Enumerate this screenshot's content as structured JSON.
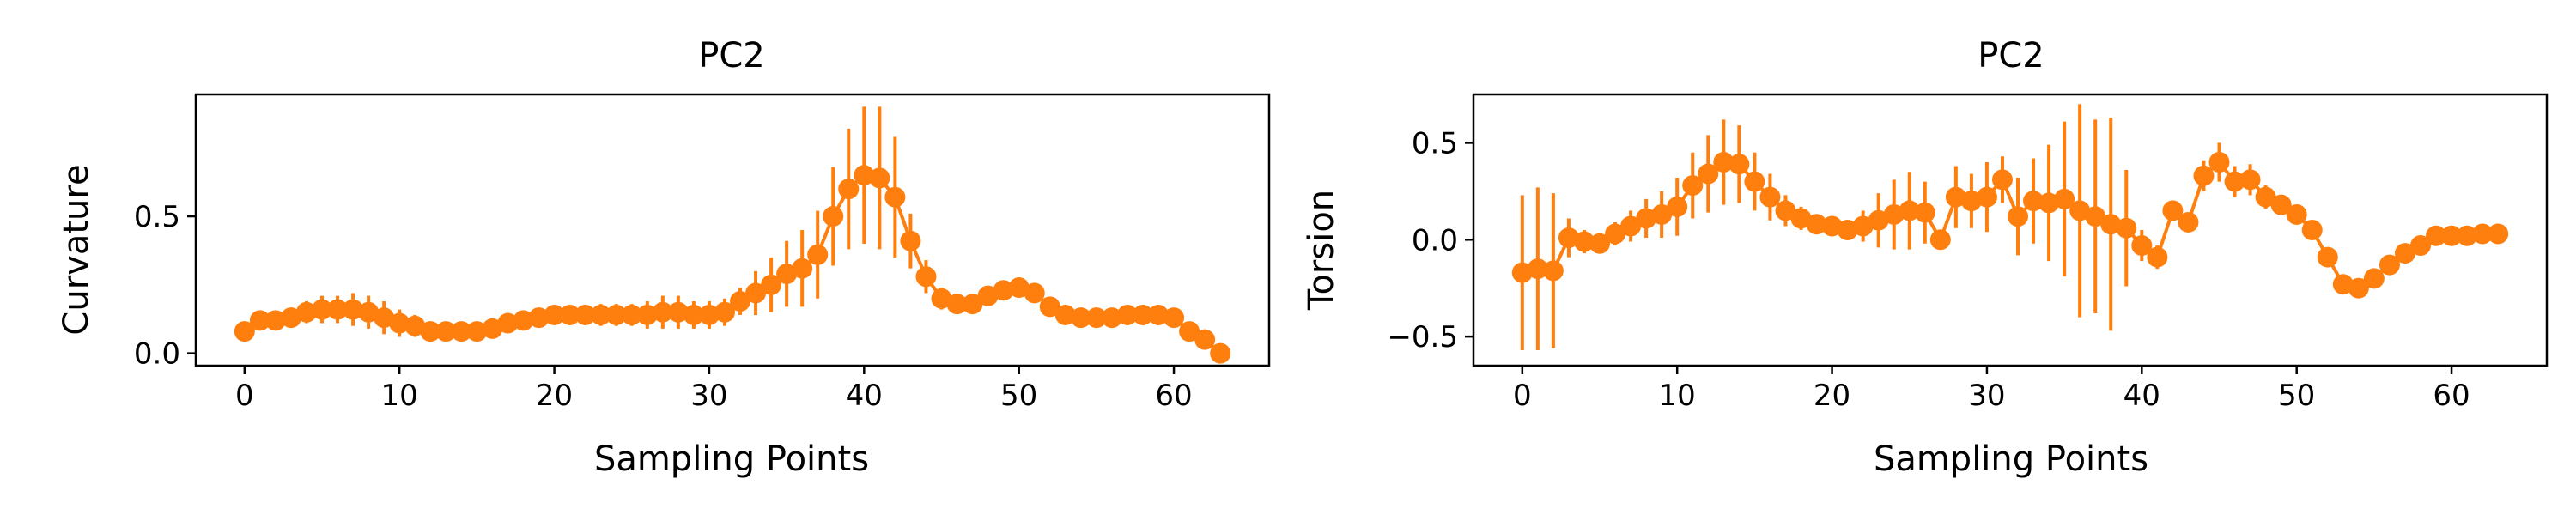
{
  "chart_data": [
    {
      "type": "line",
      "title": "PC2",
      "xlabel": "Sampling Points",
      "ylabel": "Curvature",
      "xlim": [
        -3.15,
        66.15
      ],
      "ylim": [
        -0.045,
        0.945
      ],
      "xticks": [
        0,
        10,
        20,
        30,
        40,
        50,
        60
      ],
      "yticks": [
        0.0,
        0.5
      ],
      "ytick_labels": [
        "0.0",
        "0.5"
      ],
      "color": "#ff7f0e",
      "x": [
        0,
        1,
        2,
        3,
        4,
        5,
        6,
        7,
        8,
        9,
        10,
        11,
        12,
        13,
        14,
        15,
        16,
        17,
        18,
        19,
        20,
        21,
        22,
        23,
        24,
        25,
        26,
        27,
        28,
        29,
        30,
        31,
        32,
        33,
        34,
        35,
        36,
        37,
        38,
        39,
        40,
        41,
        42,
        43,
        44,
        45,
        46,
        47,
        48,
        49,
        50,
        51,
        52,
        53,
        54,
        55,
        56,
        57,
        58,
        59,
        60,
        61,
        62,
        63
      ],
      "y": [
        0.08,
        0.12,
        0.12,
        0.13,
        0.15,
        0.16,
        0.16,
        0.16,
        0.15,
        0.13,
        0.11,
        0.1,
        0.08,
        0.08,
        0.08,
        0.08,
        0.09,
        0.11,
        0.12,
        0.13,
        0.14,
        0.14,
        0.14,
        0.14,
        0.14,
        0.14,
        0.14,
        0.15,
        0.15,
        0.14,
        0.14,
        0.15,
        0.19,
        0.22,
        0.25,
        0.29,
        0.31,
        0.36,
        0.5,
        0.6,
        0.65,
        0.64,
        0.57,
        0.41,
        0.28,
        0.2,
        0.18,
        0.18,
        0.21,
        0.23,
        0.24,
        0.22,
        0.17,
        0.14,
        0.13,
        0.13,
        0.13,
        0.14,
        0.14,
        0.14,
        0.13,
        0.08,
        0.05,
        0.0
      ],
      "yerr": [
        0.02,
        0.03,
        0.03,
        0.03,
        0.04,
        0.05,
        0.05,
        0.06,
        0.06,
        0.06,
        0.05,
        0.04,
        0.03,
        0.03,
        0.03,
        0.03,
        0.03,
        0.03,
        0.03,
        0.03,
        0.03,
        0.03,
        0.03,
        0.04,
        0.04,
        0.04,
        0.05,
        0.06,
        0.06,
        0.05,
        0.05,
        0.05,
        0.05,
        0.08,
        0.1,
        0.12,
        0.14,
        0.16,
        0.18,
        0.22,
        0.25,
        0.26,
        0.22,
        0.1,
        0.06,
        0.04,
        0.03,
        0.03,
        0.03,
        0.03,
        0.03,
        0.03,
        0.03,
        0.02,
        0.02,
        0.02,
        0.02,
        0.02,
        0.02,
        0.02,
        0.02,
        0.02,
        0.02,
        0.02
      ]
    },
    {
      "type": "line",
      "title": "PC2",
      "xlabel": "Sampling Points",
      "ylabel": "Torsion",
      "xlim": [
        -3.15,
        66.15
      ],
      "ylim": [
        -0.65,
        0.75
      ],
      "xticks": [
        0,
        10,
        20,
        30,
        40,
        50,
        60
      ],
      "yticks": [
        -0.5,
        0.0,
        0.5
      ],
      "ytick_labels": [
        "−0.5",
        "0.0",
        "0.5"
      ],
      "color": "#ff7f0e",
      "x": [
        0,
        1,
        2,
        3,
        4,
        5,
        6,
        7,
        8,
        9,
        10,
        11,
        12,
        13,
        14,
        15,
        16,
        17,
        18,
        19,
        20,
        21,
        22,
        23,
        24,
        25,
        26,
        27,
        28,
        29,
        30,
        31,
        32,
        33,
        34,
        35,
        36,
        37,
        38,
        39,
        40,
        41,
        42,
        43,
        44,
        45,
        46,
        47,
        48,
        49,
        50,
        51,
        52,
        53,
        54,
        55,
        56,
        57,
        58,
        59,
        60,
        61,
        62,
        63
      ],
      "y": [
        -0.17,
        -0.15,
        -0.16,
        0.01,
        -0.01,
        -0.02,
        0.03,
        0.07,
        0.11,
        0.13,
        0.17,
        0.28,
        0.34,
        0.4,
        0.39,
        0.3,
        0.22,
        0.15,
        0.11,
        0.08,
        0.07,
        0.05,
        0.07,
        0.1,
        0.13,
        0.15,
        0.14,
        0.0,
        0.22,
        0.2,
        0.22,
        0.31,
        0.12,
        0.2,
        0.19,
        0.21,
        0.15,
        0.12,
        0.08,
        0.06,
        -0.03,
        -0.09,
        0.15,
        0.09,
        0.33,
        0.4,
        0.3,
        0.31,
        0.22,
        0.18,
        0.13,
        0.05,
        -0.09,
        -0.23,
        -0.25,
        -0.2,
        -0.13,
        -0.07,
        -0.03,
        0.02,
        0.02,
        0.02,
        0.03,
        0.03
      ],
      "yerr": [
        0.4,
        0.42,
        0.4,
        0.1,
        0.06,
        0.05,
        0.06,
        0.08,
        0.1,
        0.12,
        0.15,
        0.17,
        0.2,
        0.22,
        0.2,
        0.15,
        0.12,
        0.08,
        0.06,
        0.05,
        0.05,
        0.05,
        0.08,
        0.14,
        0.18,
        0.2,
        0.16,
        0.04,
        0.16,
        0.14,
        0.18,
        0.12,
        0.2,
        0.22,
        0.3,
        0.4,
        0.55,
        0.5,
        0.55,
        0.3,
        0.08,
        0.06,
        0.05,
        0.05,
        0.08,
        0.1,
        0.08,
        0.08,
        0.06,
        0.05,
        0.05,
        0.04,
        0.04,
        0.03,
        0.03,
        0.03,
        0.03,
        0.03,
        0.03,
        0.02,
        0.02,
        0.02,
        0.02,
        0.02
      ]
    }
  ]
}
